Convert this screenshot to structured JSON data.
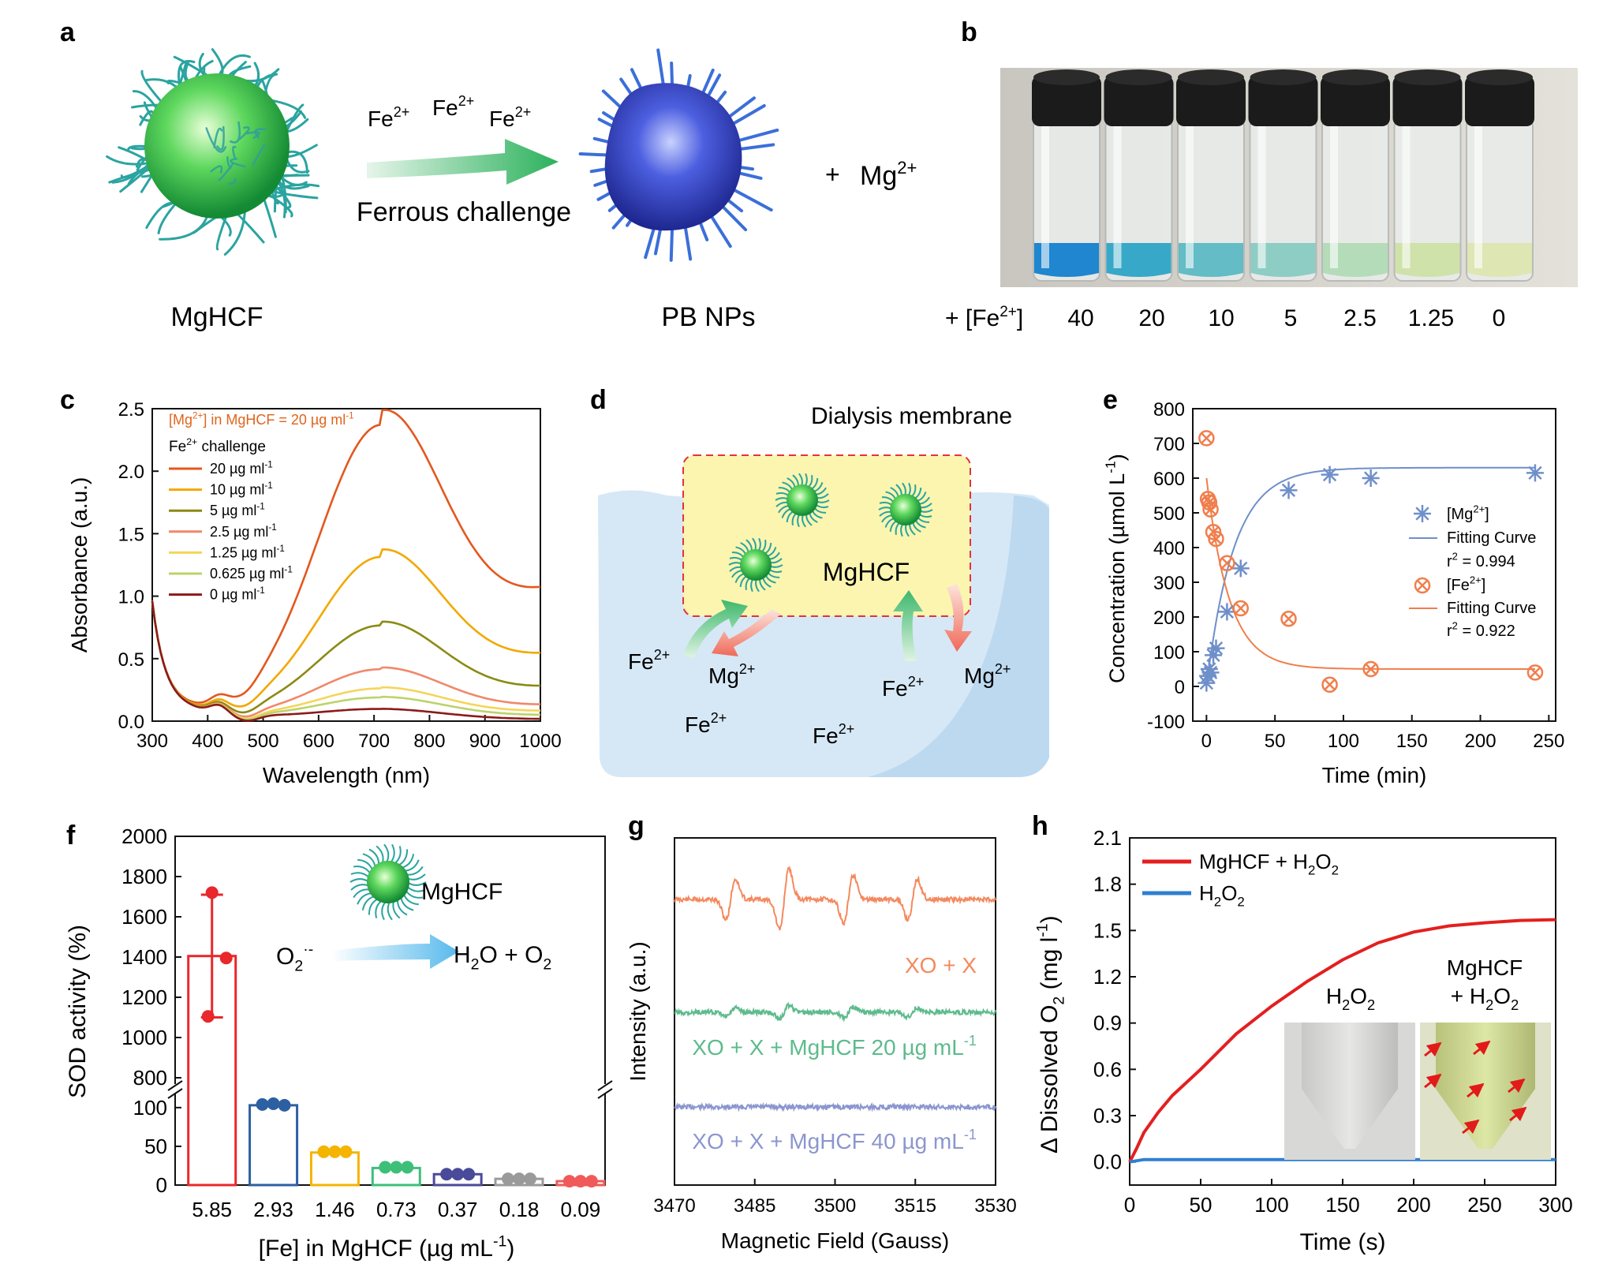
{
  "panels": {
    "a": {
      "label": "a",
      "left_caption": "MgHCF",
      "right_caption": "PB NPs",
      "ion_main": "Fe",
      "ion_sup": "2+",
      "arrow_caption": "Ferrous challenge",
      "product_main": "Mg",
      "product_sup": "2+",
      "plus": "+"
    },
    "b": {
      "label": "b",
      "row_prefix": "+ [Fe",
      "row_prefix_sup": "2+",
      "row_prefix_end": "]",
      "concentrations": [
        "40",
        "20",
        "10",
        "5",
        "2.5",
        "1.25",
        "0"
      ],
      "vial_colors": [
        "#1f86cf",
        "#38a8c8",
        "#63bcc6",
        "#8dcdc4",
        "#b4dcb9",
        "#cfe2aa",
        "#dee6b4"
      ]
    },
    "c": {
      "label": "c",
      "note_main": "[Mg",
      "note_sup": "2+",
      "note_rest": "] in MgHCF = 20 µg ml",
      "note_unit_sup": "-1",
      "legend_title_main": "Fe",
      "legend_title_sup": "2+",
      "legend_title_rest": " challenge",
      "legend_unit_sup": "-1"
    },
    "d": {
      "label": "d",
      "membrane_label": "Dialysis membrane",
      "center_label": "MgHCF",
      "fe_main": "Fe",
      "fe_sup": "2+",
      "mg_main": "Mg",
      "mg_sup": "2+"
    },
    "e": {
      "label": "e",
      "legend_mg_main": "[Mg",
      "legend_mg_sup": "2+",
      "legend_mg_end": "]",
      "legend_fit": "Fitting Curve",
      "legend_r2_mg_pre": "r",
      "legend_r2_sup": "2",
      "legend_r2_mg_val": " = 0.994",
      "legend_fe_main": "[Fe",
      "legend_fe_sup": "2+",
      "legend_fe_end": "]",
      "legend_r2_fe_val": " = 0.922"
    },
    "f": {
      "label": "f",
      "inset_reactant_main": "O",
      "inset_reactant_sub": "2",
      "inset_reactant_sup": "·-",
      "inset_product_a": "H",
      "inset_sub_2": "2",
      "inset_product_b": "O",
      "inset_product_c": " + O",
      "inset_material": "MgHCF"
    },
    "g": {
      "label": "g",
      "trace_labels": [
        "XO + X",
        "XO + X + MgHCF 20 µg mL",
        "XO + X + MgHCF 40 µg mL"
      ],
      "unit_sup": "-1"
    },
    "h": {
      "label": "h",
      "legend_h2o2_main": "H",
      "legend_sub": "2",
      "legend_h2o2_o": "O",
      "legend_mix_pre": "MgHCF + H",
      "inset_left_main": "H",
      "inset_left_o": "O",
      "inset_right_line1": "MgHCF",
      "inset_right_line2_pre": "+ H",
      "inset_right_o": "O"
    }
  },
  "chart_data": [
    {
      "panel": "c",
      "type": "line",
      "xlabel": "Wavelength (nm)",
      "ylabel": "Absorbance (a.u.)",
      "xlim": [
        300,
        1000
      ],
      "ylim": [
        0.0,
        2.5
      ],
      "xticks": [
        "300",
        "400",
        "500",
        "600",
        "700",
        "800",
        "900",
        "1000"
      ],
      "yticks": [
        "0.0",
        "0.5",
        "1.0",
        "1.5",
        "2.0",
        "2.5"
      ],
      "series": [
        {
          "name": "20 µg ml",
          "color": "#e4571e",
          "peak": 2.29,
          "tail": 0.65
        },
        {
          "name": "10 µg ml",
          "color": "#f2a800",
          "peak": 1.27,
          "tail": 0.33
        },
        {
          "name": "5 µg ml",
          "color": "#8c8a14",
          "peak": 0.74,
          "tail": 0.17
        },
        {
          "name": "2.5 µg ml",
          "color": "#f0886a",
          "peak": 0.4,
          "tail": 0.08
        },
        {
          "name": "1.25 µg ml",
          "color": "#f5d55a",
          "peak": 0.25,
          "tail": 0.05
        },
        {
          "name": "0.625 µg ml",
          "color": "#bcd36a",
          "peak": 0.18,
          "tail": 0.03
        },
        {
          "name": "0 µg ml",
          "color": "#8b1a1a",
          "peak": 0.09,
          "tail": 0.01
        }
      ]
    },
    {
      "panel": "e",
      "type": "scatter",
      "xlabel": "Time (min)",
      "ylabel": "Concentration (µmol L",
      "ylabel_sup": "-1",
      "ylabel_end": ")",
      "xlim": [
        -10,
        255
      ],
      "ylim": [
        -100,
        800
      ],
      "xticks": [
        "0",
        "50",
        "100",
        "150",
        "200",
        "250"
      ],
      "yticks": [
        "-100",
        "0",
        "100",
        "200",
        "300",
        "400",
        "500",
        "600",
        "700",
        "800"
      ],
      "series": [
        {
          "name": "[Mg2+]",
          "color": "#6f8fc9",
          "x": [
            0,
            1,
            2,
            3,
            5,
            7,
            15,
            25,
            60,
            90,
            120,
            240
          ],
          "y": [
            10,
            30,
            50,
            40,
            90,
            110,
            215,
            340,
            565,
            610,
            600,
            615
          ],
          "fit": {
            "model": "1-exp",
            "plateau": 630,
            "k": 0.05,
            "r2": 0.994
          }
        },
        {
          "name": "[Fe2+]",
          "color": "#f07e4c",
          "x": [
            0,
            1,
            2,
            3,
            5,
            7,
            15,
            25,
            60,
            90,
            120,
            240
          ],
          "y": [
            715,
            540,
            530,
            510,
            445,
            425,
            355,
            225,
            195,
            5,
            50,
            40
          ],
          "fit": {
            "model": "exp",
            "start": 600,
            "end": 50,
            "k": 0.06,
            "r2": 0.922
          }
        }
      ]
    },
    {
      "panel": "f",
      "type": "bar",
      "xlabel": "[Fe] in MgHCF (µg mL",
      "xlabel_sup": "-1",
      "xlabel_end": ")",
      "ylabel": "SOD activity (%)",
      "categories": [
        "5.85",
        "2.93",
        "1.46",
        "0.73",
        "0.37",
        "0.18",
        "0.09"
      ],
      "values": [
        1405,
        103,
        42,
        22,
        14,
        8,
        5
      ],
      "replicates": [
        [
          1720,
          1395,
          1105
        ],
        [
          104,
          105,
          103
        ],
        [
          43,
          43,
          43
        ],
        [
          23,
          23,
          23
        ],
        [
          14,
          14,
          14
        ],
        [
          8,
          8,
          8
        ],
        [
          5,
          5,
          5
        ]
      ],
      "error_bars": [
        [
          1100,
          1710
        ],
        null,
        null,
        null,
        null,
        null,
        null
      ],
      "colors": [
        "#e8282b",
        "#2d5fa3",
        "#f4b400",
        "#3dbf7a",
        "#4a4a9a",
        "#9a9a9a",
        "#f05a5a"
      ],
      "y_lower_ticks": [
        "0",
        "50",
        "100"
      ],
      "y_upper_ticks": [
        "800",
        "1000",
        "1200",
        "1400",
        "1600",
        "1800",
        "2000"
      ],
      "axis_break": [
        100,
        800
      ]
    },
    {
      "panel": "g",
      "type": "line",
      "xlabel": "Magnetic Field (Gauss)",
      "ylabel": "Intensity (a.u.)",
      "xlim": [
        3470,
        3530
      ],
      "xticks": [
        "3470",
        "3485",
        "3500",
        "3515",
        "3530"
      ],
      "series": [
        {
          "name": "XO + X",
          "color": "#f4895e",
          "amplitude": 1.0
        },
        {
          "name": "XO + X + MgHCF 20 µg mL-1",
          "color": "#5dbb8c",
          "amplitude": 0.22
        },
        {
          "name": "XO + X + MgHCF 40 µg mL-1",
          "color": "#8b96cf",
          "amplitude": 0.0
        }
      ],
      "peak_positions_gauss": [
        3480.5,
        3490.5,
        3502.5,
        3514.5
      ]
    },
    {
      "panel": "h",
      "type": "line",
      "xlabel": "Time (s)",
      "ylabel": "Δ Dissolved O",
      "ylabel_sub": "2",
      "ylabel_end": " (mg l",
      "ylabel_sup": "-1",
      "ylabel_close": ")",
      "xlim": [
        0,
        300
      ],
      "ylim": [
        -0.15,
        2.1
      ],
      "xticks": [
        "0",
        "50",
        "100",
        "150",
        "200",
        "250",
        "300"
      ],
      "yticks": [
        "0.0",
        "0.3",
        "0.6",
        "0.9",
        "1.2",
        "1.5",
        "1.8",
        "2.1"
      ],
      "series": [
        {
          "name": "MgHCF + H2O2",
          "color": "#e41f1f",
          "x": [
            0,
            5,
            10,
            20,
            30,
            50,
            75,
            100,
            125,
            150,
            175,
            200,
            225,
            250,
            275,
            300
          ],
          "y": [
            0.0,
            0.09,
            0.19,
            0.32,
            0.43,
            0.6,
            0.83,
            1.01,
            1.17,
            1.31,
            1.42,
            1.49,
            1.53,
            1.55,
            1.565,
            1.57
          ]
        },
        {
          "name": "H2O2",
          "color": "#2f7fd0",
          "x": [
            0,
            10,
            300
          ],
          "y": [
            0.0,
            0.015,
            0.015
          ]
        }
      ]
    }
  ]
}
